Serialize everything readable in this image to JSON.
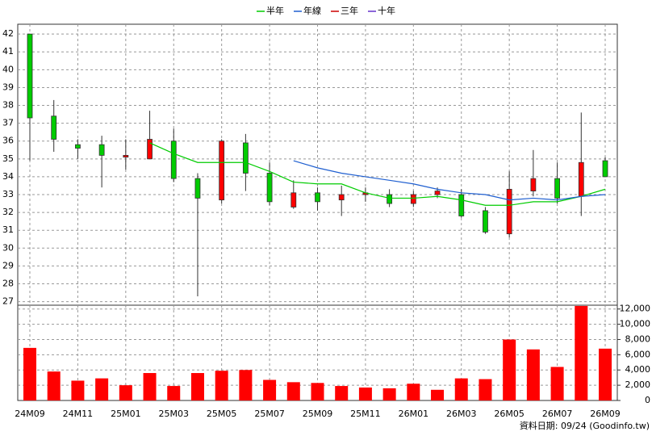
{
  "chart_data": [
    {
      "type": "candlestick",
      "categories": [
        "24M09",
        null,
        "24M11",
        null,
        "25M01",
        null,
        "25M03",
        null,
        "25M05",
        null,
        "25M07",
        null,
        "25M09",
        null,
        "25M11",
        null,
        "26M01",
        null,
        "26M03",
        null,
        "26M05",
        null,
        "26M07",
        null,
        "26M09"
      ],
      "open": [
        42.0,
        37.4,
        35.8,
        35.8,
        35.1,
        35.0,
        36.0,
        33.9,
        32.7,
        35.9,
        34.2,
        32.3,
        33.1,
        32.7,
        33.0,
        33.0,
        32.5,
        33.0,
        33.0,
        32.1,
        30.8,
        33.2,
        33.9,
        32.9,
        34.9
      ],
      "high": [
        42.0,
        38.3,
        36.1,
        36.3,
        36.1,
        37.7,
        36.7,
        34.2,
        36.1,
        36.4,
        34.8,
        33.8,
        33.4,
        33.5,
        33.4,
        33.3,
        33.2,
        33.4,
        33.3,
        32.3,
        34.3,
        35.5,
        34.8,
        37.6,
        35.1
      ],
      "low": [
        34.9,
        35.4,
        35.0,
        33.4,
        34.4,
        35.0,
        33.7,
        27.3,
        32.5,
        33.2,
        32.4,
        32.2,
        32.1,
        31.8,
        32.6,
        32.3,
        32.3,
        32.8,
        31.7,
        30.8,
        30.6,
        32.9,
        32.5,
        31.8,
        34.0
      ],
      "close": [
        37.3,
        36.1,
        35.6,
        35.2,
        35.2,
        36.1,
        33.9,
        32.8,
        36.0,
        34.2,
        32.6,
        33.1,
        32.6,
        33.0,
        33.1,
        32.5,
        33.0,
        33.2,
        31.8,
        30.9,
        33.3,
        33.9,
        32.8,
        34.8,
        34.0
      ],
      "up_color": "#ff0000",
      "down_color": "#00cc00",
      "series": [
        {
          "name": "半年",
          "color": "#00cc00",
          "values": [
            null,
            null,
            null,
            null,
            null,
            35.9,
            35.3,
            34.8,
            34.8,
            34.8,
            34.3,
            33.7,
            33.6,
            33.6,
            33.1,
            32.8,
            32.8,
            32.9,
            32.7,
            32.4,
            32.4,
            32.6,
            32.6,
            32.9,
            33.3
          ]
        },
        {
          "name": "年線",
          "color": "#1f5fd0",
          "values": [
            null,
            null,
            null,
            null,
            null,
            null,
            null,
            null,
            null,
            null,
            null,
            34.9,
            34.5,
            34.2,
            34.0,
            33.8,
            33.6,
            33.3,
            33.1,
            33.0,
            32.7,
            32.8,
            32.7,
            32.9,
            33.0
          ]
        },
        {
          "name": "三年",
          "color": "#cc0000",
          "values": [
            null,
            null,
            null,
            null,
            null,
            null,
            null,
            null,
            null,
            null,
            null,
            null,
            null,
            null,
            null,
            null,
            null,
            null,
            null,
            null,
            null,
            null,
            null,
            null,
            null
          ]
        },
        {
          "name": "十年",
          "color": "#6633cc",
          "values": [
            null,
            null,
            null,
            null,
            null,
            null,
            null,
            null,
            null,
            null,
            null,
            null,
            null,
            null,
            null,
            null,
            null,
            null,
            null,
            null,
            null,
            null,
            null,
            null,
            null
          ]
        }
      ],
      "ylim": [
        26.8,
        42.55
      ],
      "yticks": [
        27,
        28,
        29,
        30,
        31,
        32,
        33,
        34,
        35,
        36,
        37,
        38,
        39,
        40,
        41,
        42
      ],
      "grid": true
    },
    {
      "type": "bar",
      "values": [
        6900,
        3800,
        2600,
        2900,
        2000,
        3600,
        1900,
        3600,
        3900,
        4000,
        2700,
        2400,
        2300,
        1900,
        1700,
        1600,
        2200,
        1400,
        2900,
        2800,
        8000,
        6700,
        4400,
        12400,
        6800
      ],
      "color": "#ff0000",
      "ylim": [
        0,
        12500
      ],
      "yticks": [
        0,
        {
          "value": 2000,
          "label": "2,000"
        },
        {
          "value": 4000,
          "label": "4,000"
        },
        {
          "value": 6000,
          "label": "6,000"
        },
        {
          "value": 8000,
          "label": "8,000"
        },
        {
          "value": 10000,
          "label": "10,000"
        },
        {
          "value": 12000,
          "label": "12,000"
        }
      ],
      "grid": true,
      "note": "資料日期: 09/24 (Goodinfo.tw)"
    }
  ]
}
